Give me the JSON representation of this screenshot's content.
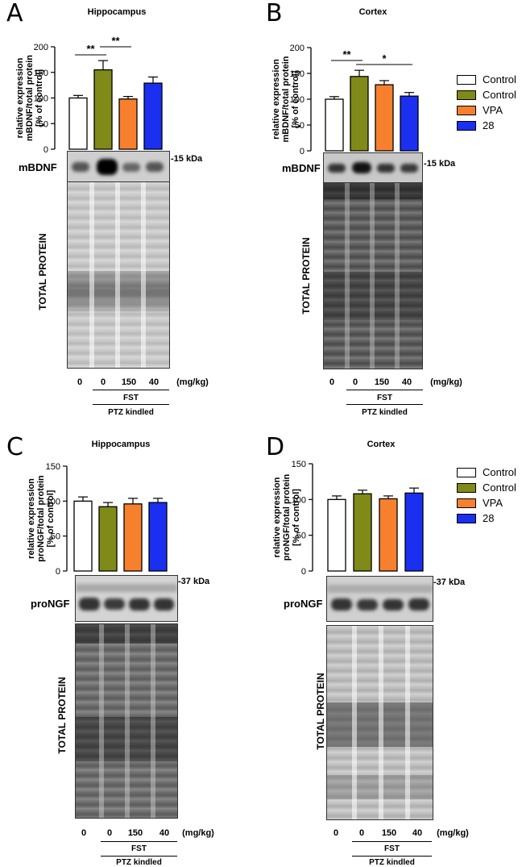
{
  "colors": {
    "control": "#ffffff",
    "control_fst": "#808a18",
    "vpa": "#f7802e",
    "c28": "#1a2ff0"
  },
  "legend_top": [
    {
      "label": "Control",
      "color": "#ffffff"
    },
    {
      "label": "Control",
      "color": "#808a18"
    },
    {
      "label": "VPA",
      "color": "#f7802e"
    },
    {
      "label": "28",
      "color": "#1a2ff0"
    }
  ],
  "legend_bottom": [
    {
      "label": "Control",
      "color": "#ffffff"
    },
    {
      "label": "Control",
      "color": "#808a18"
    },
    {
      "label": "VPA",
      "color": "#f7802e"
    },
    {
      "label": "28",
      "color": "#1a2ff0"
    }
  ],
  "chart_data": [
    {
      "panel": "A",
      "type": "bar",
      "title": "Hippocampus",
      "ylabel_lines": [
        "relative expression",
        "mBDNF/total protein",
        "[% of control]"
      ],
      "ylim": [
        0,
        200
      ],
      "yticks": [
        0,
        50,
        100,
        150,
        200
      ],
      "categories": [
        "0",
        "0",
        "150",
        "40"
      ],
      "values": [
        100,
        155,
        98,
        129
      ],
      "errors": [
        5,
        18,
        5,
        12
      ],
      "significance": [
        {
          "from": 0,
          "to": 1,
          "label": "**"
        },
        {
          "from": 1,
          "to": 2,
          "label": "**"
        }
      ],
      "blot_label": "mBDNF",
      "blot_marker": "15 kDa",
      "total_label": "TOTAL PROTEIN",
      "dose_unit": "(mg/kg)",
      "group1": "FST",
      "group2": "PTZ kindled"
    },
    {
      "panel": "B",
      "type": "bar",
      "title": "Cortex",
      "ylabel_lines": [
        "relative expression",
        "mBDNF/total protein",
        "[% of control]"
      ],
      "ylim": [
        0,
        200
      ],
      "yticks": [
        0,
        50,
        100,
        150,
        200
      ],
      "categories": [
        "0",
        "0",
        "150",
        "40"
      ],
      "values": [
        100,
        144,
        128,
        106
      ],
      "errors": [
        5,
        12,
        8,
        7
      ],
      "significance": [
        {
          "from": 0,
          "to": 1,
          "label": "**"
        },
        {
          "from": 1,
          "to": 3,
          "label": "*"
        }
      ],
      "blot_label": "mBDNF",
      "blot_marker": "15 kDa",
      "total_label": "TOTAL PROTEIN",
      "dose_unit": "(mg/kg)",
      "group1": "FST",
      "group2": "PTZ kindled"
    },
    {
      "panel": "C",
      "type": "bar",
      "title": "Hippocampus",
      "ylabel_lines": [
        "relative expression",
        "proNGF/total protein",
        "[% of control]"
      ],
      "ylim": [
        0,
        150
      ],
      "yticks": [
        0,
        50,
        100,
        150
      ],
      "categories": [
        "0",
        "0",
        "150",
        "40"
      ],
      "values": [
        100,
        92,
        96,
        98
      ],
      "errors": [
        6,
        6,
        8,
        6
      ],
      "significance": [],
      "blot_label": "proNGF",
      "blot_marker": "37 kDa",
      "total_label": "TOTAL PROTEIN",
      "dose_unit": "(mg/kg)",
      "group1": "FST",
      "group2": "PTZ kindled"
    },
    {
      "panel": "D",
      "type": "bar",
      "title": "Cortex",
      "ylabel_lines": [
        "relative expression",
        "proNGF/total protein",
        "[% of control]"
      ],
      "ylim": [
        0,
        150
      ],
      "yticks": [
        0,
        50,
        100,
        150
      ],
      "categories": [
        "0",
        "0",
        "150",
        "40"
      ],
      "values": [
        100,
        108,
        101,
        109
      ],
      "errors": [
        5,
        5,
        4,
        7
      ],
      "significance": [],
      "blot_label": "proNGF",
      "blot_marker": "37 kDa",
      "total_label": "TOTAL PROTEIN",
      "dose_unit": "(mg/kg)",
      "group1": "FST",
      "group2": "PTZ kindled"
    }
  ]
}
